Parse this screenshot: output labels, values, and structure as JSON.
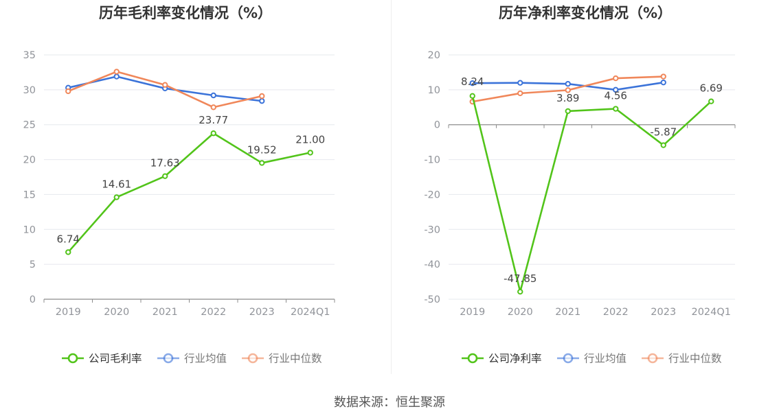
{
  "source": "数据来源：恒生聚源",
  "colors": {
    "company": "#52c41a",
    "industry_avg": "#3b73d9",
    "industry_median": "#f0875a",
    "grid": "#e6e8ee",
    "axis": "#8c8c8c",
    "tick_text": "#909399",
    "title_text": "#333333",
    "label_text": "#444444"
  },
  "chart_data": [
    {
      "type": "line",
      "title": "历年毛利率变化情况（%）",
      "categories": [
        "2019",
        "2020",
        "2021",
        "2022",
        "2023",
        "2024Q1"
      ],
      "ylim": [
        0,
        35
      ],
      "yticks": [
        0,
        5,
        10,
        15,
        20,
        25,
        30,
        35
      ],
      "grid": true,
      "legend_position": "bottom",
      "series": [
        {
          "name": "公司毛利率",
          "color_key": "company",
          "values": [
            6.74,
            14.61,
            17.63,
            23.77,
            19.52,
            21.0
          ],
          "labels": [
            "6.74",
            "14.61",
            "17.63",
            "23.77",
            "19.52",
            "21.00"
          ]
        },
        {
          "name": "行业均值",
          "color_key": "industry_avg",
          "values": [
            30.3,
            31.9,
            30.2,
            29.2,
            28.4,
            null
          ]
        },
        {
          "name": "行业中位数",
          "color_key": "industry_median",
          "values": [
            29.8,
            32.6,
            30.7,
            27.5,
            29.1,
            null
          ]
        }
      ]
    },
    {
      "type": "line",
      "title": "历年净利率变化情况（%）",
      "categories": [
        "2019",
        "2020",
        "2021",
        "2022",
        "2023",
        "2024Q1"
      ],
      "ylim": [
        -50,
        20
      ],
      "yticks": [
        -50,
        -40,
        -30,
        -20,
        -10,
        0,
        10,
        20
      ],
      "grid": true,
      "legend_position": "bottom",
      "series": [
        {
          "name": "公司净利率",
          "color_key": "company",
          "values": [
            8.24,
            -47.85,
            3.89,
            4.56,
            -5.87,
            6.69
          ],
          "labels": [
            "8.24",
            "-47.85",
            "3.89",
            "4.56",
            "-5.87",
            "6.69"
          ]
        },
        {
          "name": "行业均值",
          "color_key": "industry_avg",
          "values": [
            11.9,
            12.0,
            11.7,
            10.0,
            12.1,
            null
          ]
        },
        {
          "name": "行业中位数",
          "color_key": "industry_median",
          "values": [
            6.6,
            9.0,
            9.9,
            13.3,
            13.8,
            null
          ]
        }
      ]
    }
  ]
}
